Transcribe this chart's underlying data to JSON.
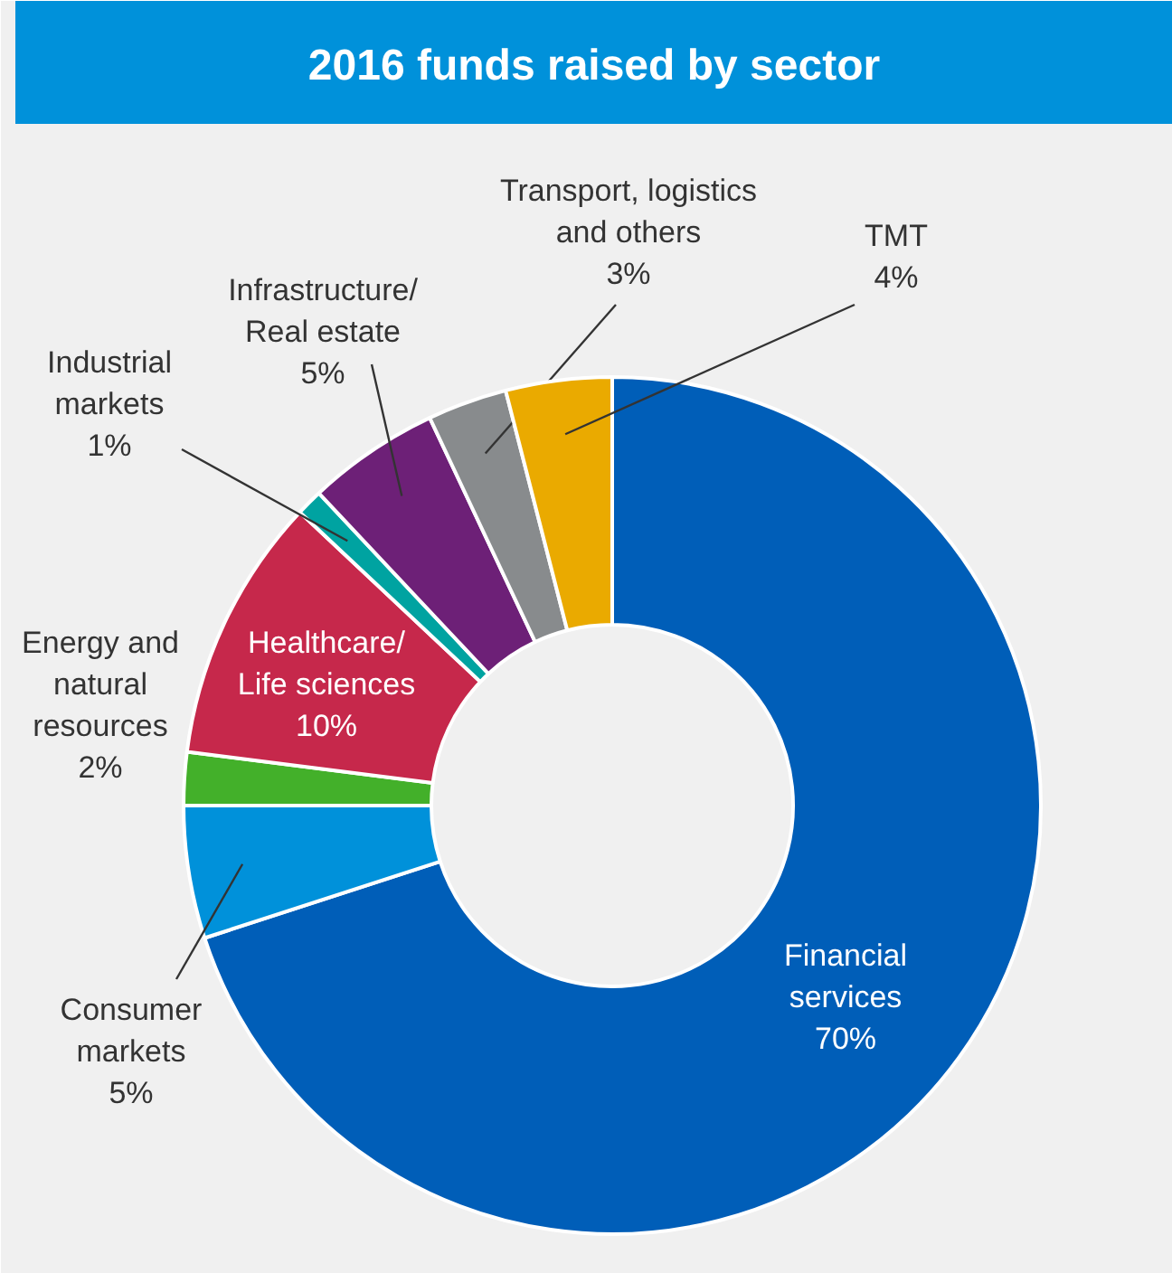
{
  "chart_data": {
    "type": "donut",
    "title": "2016 funds raised by sector",
    "categories": [
      "Financial services",
      "Consumer markets",
      "Energy and natural resources",
      "Healthcare/Life sciences",
      "Industrial markets",
      "Infrastructure/Real estate",
      "Transport, logistics and others",
      "TMT"
    ],
    "values": [
      70,
      5,
      2,
      10,
      1,
      5,
      3,
      4
    ],
    "value_labels": [
      "70%",
      "5%",
      "2%",
      "10%",
      "1%",
      "5%",
      "3%",
      "4%"
    ],
    "colors": [
      "#005eb8",
      "#0091da",
      "#43b02a",
      "#c6284b",
      "#00a3a1",
      "#6d2077",
      "#888b8d",
      "#eaaa00"
    ]
  }
}
